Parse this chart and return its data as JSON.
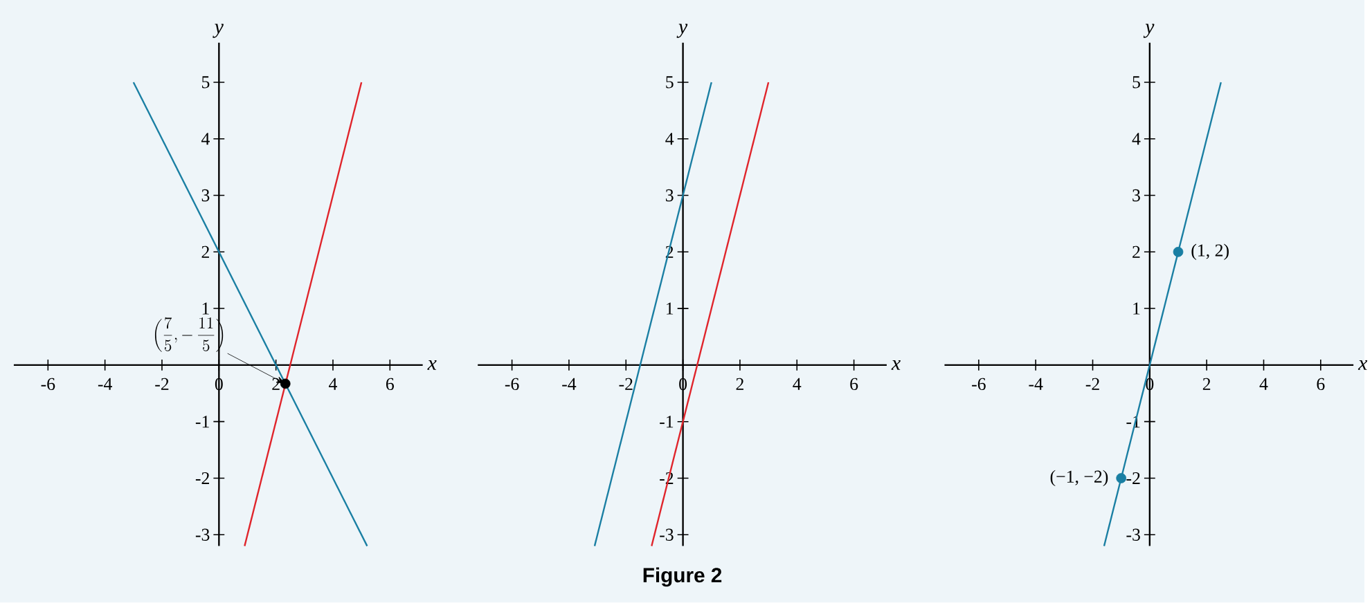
{
  "chart_data": [
    {
      "type": "line",
      "xlabel": "x",
      "ylabel": "y",
      "xlim": [
        -7.2,
        7.15
      ],
      "ylim": [
        -3.2,
        5.7
      ],
      "xticks": [
        -6,
        -4,
        -2,
        0,
        2,
        4,
        6
      ],
      "yticks": [
        -3,
        -2,
        -1,
        1,
        2,
        3,
        4,
        5
      ],
      "series": [
        {
          "color": "#1a7fa3",
          "x": [
            -3,
            5.2
          ],
          "values": [
            5,
            -3.2
          ]
        },
        {
          "color": "#e0242b",
          "x": [
            0.9,
            5
          ],
          "values": [
            -3.2,
            5
          ]
        },
        {
          "type": "scatter",
          "marker": "circle",
          "color": "#000000",
          "x": [
            2.33
          ],
          "values": [
            -0.33
          ]
        }
      ],
      "annotations": [
        {
          "text": "\\left(\\frac{7}{5},-\\,\\frac{11}{5}\\right)",
          "x": 2.33,
          "y": -0.33
        }
      ]
    },
    {
      "type": "line",
      "xlabel": "x",
      "ylabel": "y",
      "xlim": [
        -7.2,
        7.15
      ],
      "ylim": [
        -3.2,
        5.7
      ],
      "xticks": [
        -6,
        -4,
        -2,
        0,
        2,
        4,
        6
      ],
      "yticks": [
        -3,
        -2,
        -1,
        1,
        2,
        3,
        4,
        5
      ],
      "series": [
        {
          "color": "#1a7fa3",
          "x": [
            -3.1,
            1
          ],
          "values": [
            -3.2,
            5
          ]
        },
        {
          "color": "#e0242b",
          "x": [
            -1.1,
            3
          ],
          "values": [
            -3.2,
            5
          ]
        }
      ],
      "annotations": [
        "Figure 2"
      ]
    },
    {
      "type": "line",
      "xlabel": "x",
      "ylabel": "y",
      "xlim": [
        -7.2,
        7.15
      ],
      "ylim": [
        -3.2,
        5.7
      ],
      "xticks": [
        -6,
        -4,
        -2,
        0,
        2,
        4,
        6
      ],
      "yticks": [
        -3,
        -2,
        -1,
        1,
        2,
        3,
        4,
        5
      ],
      "series": [
        {
          "color": "#1a7fa3",
          "x": [
            -1.6,
            2.5
          ],
          "values": [
            -3.2,
            5
          ]
        },
        {
          "type": "scatter",
          "marker": "circle",
          "color": "#1a7fa3",
          "x": [
            1,
            -1
          ],
          "values": [
            2,
            -2
          ]
        }
      ],
      "annotations": [
        {
          "text": "(1, 2)",
          "x": 1,
          "y": 2
        },
        {
          "text": "(−1, −2)",
          "x": -1,
          "y": -2
        }
      ]
    }
  ]
}
